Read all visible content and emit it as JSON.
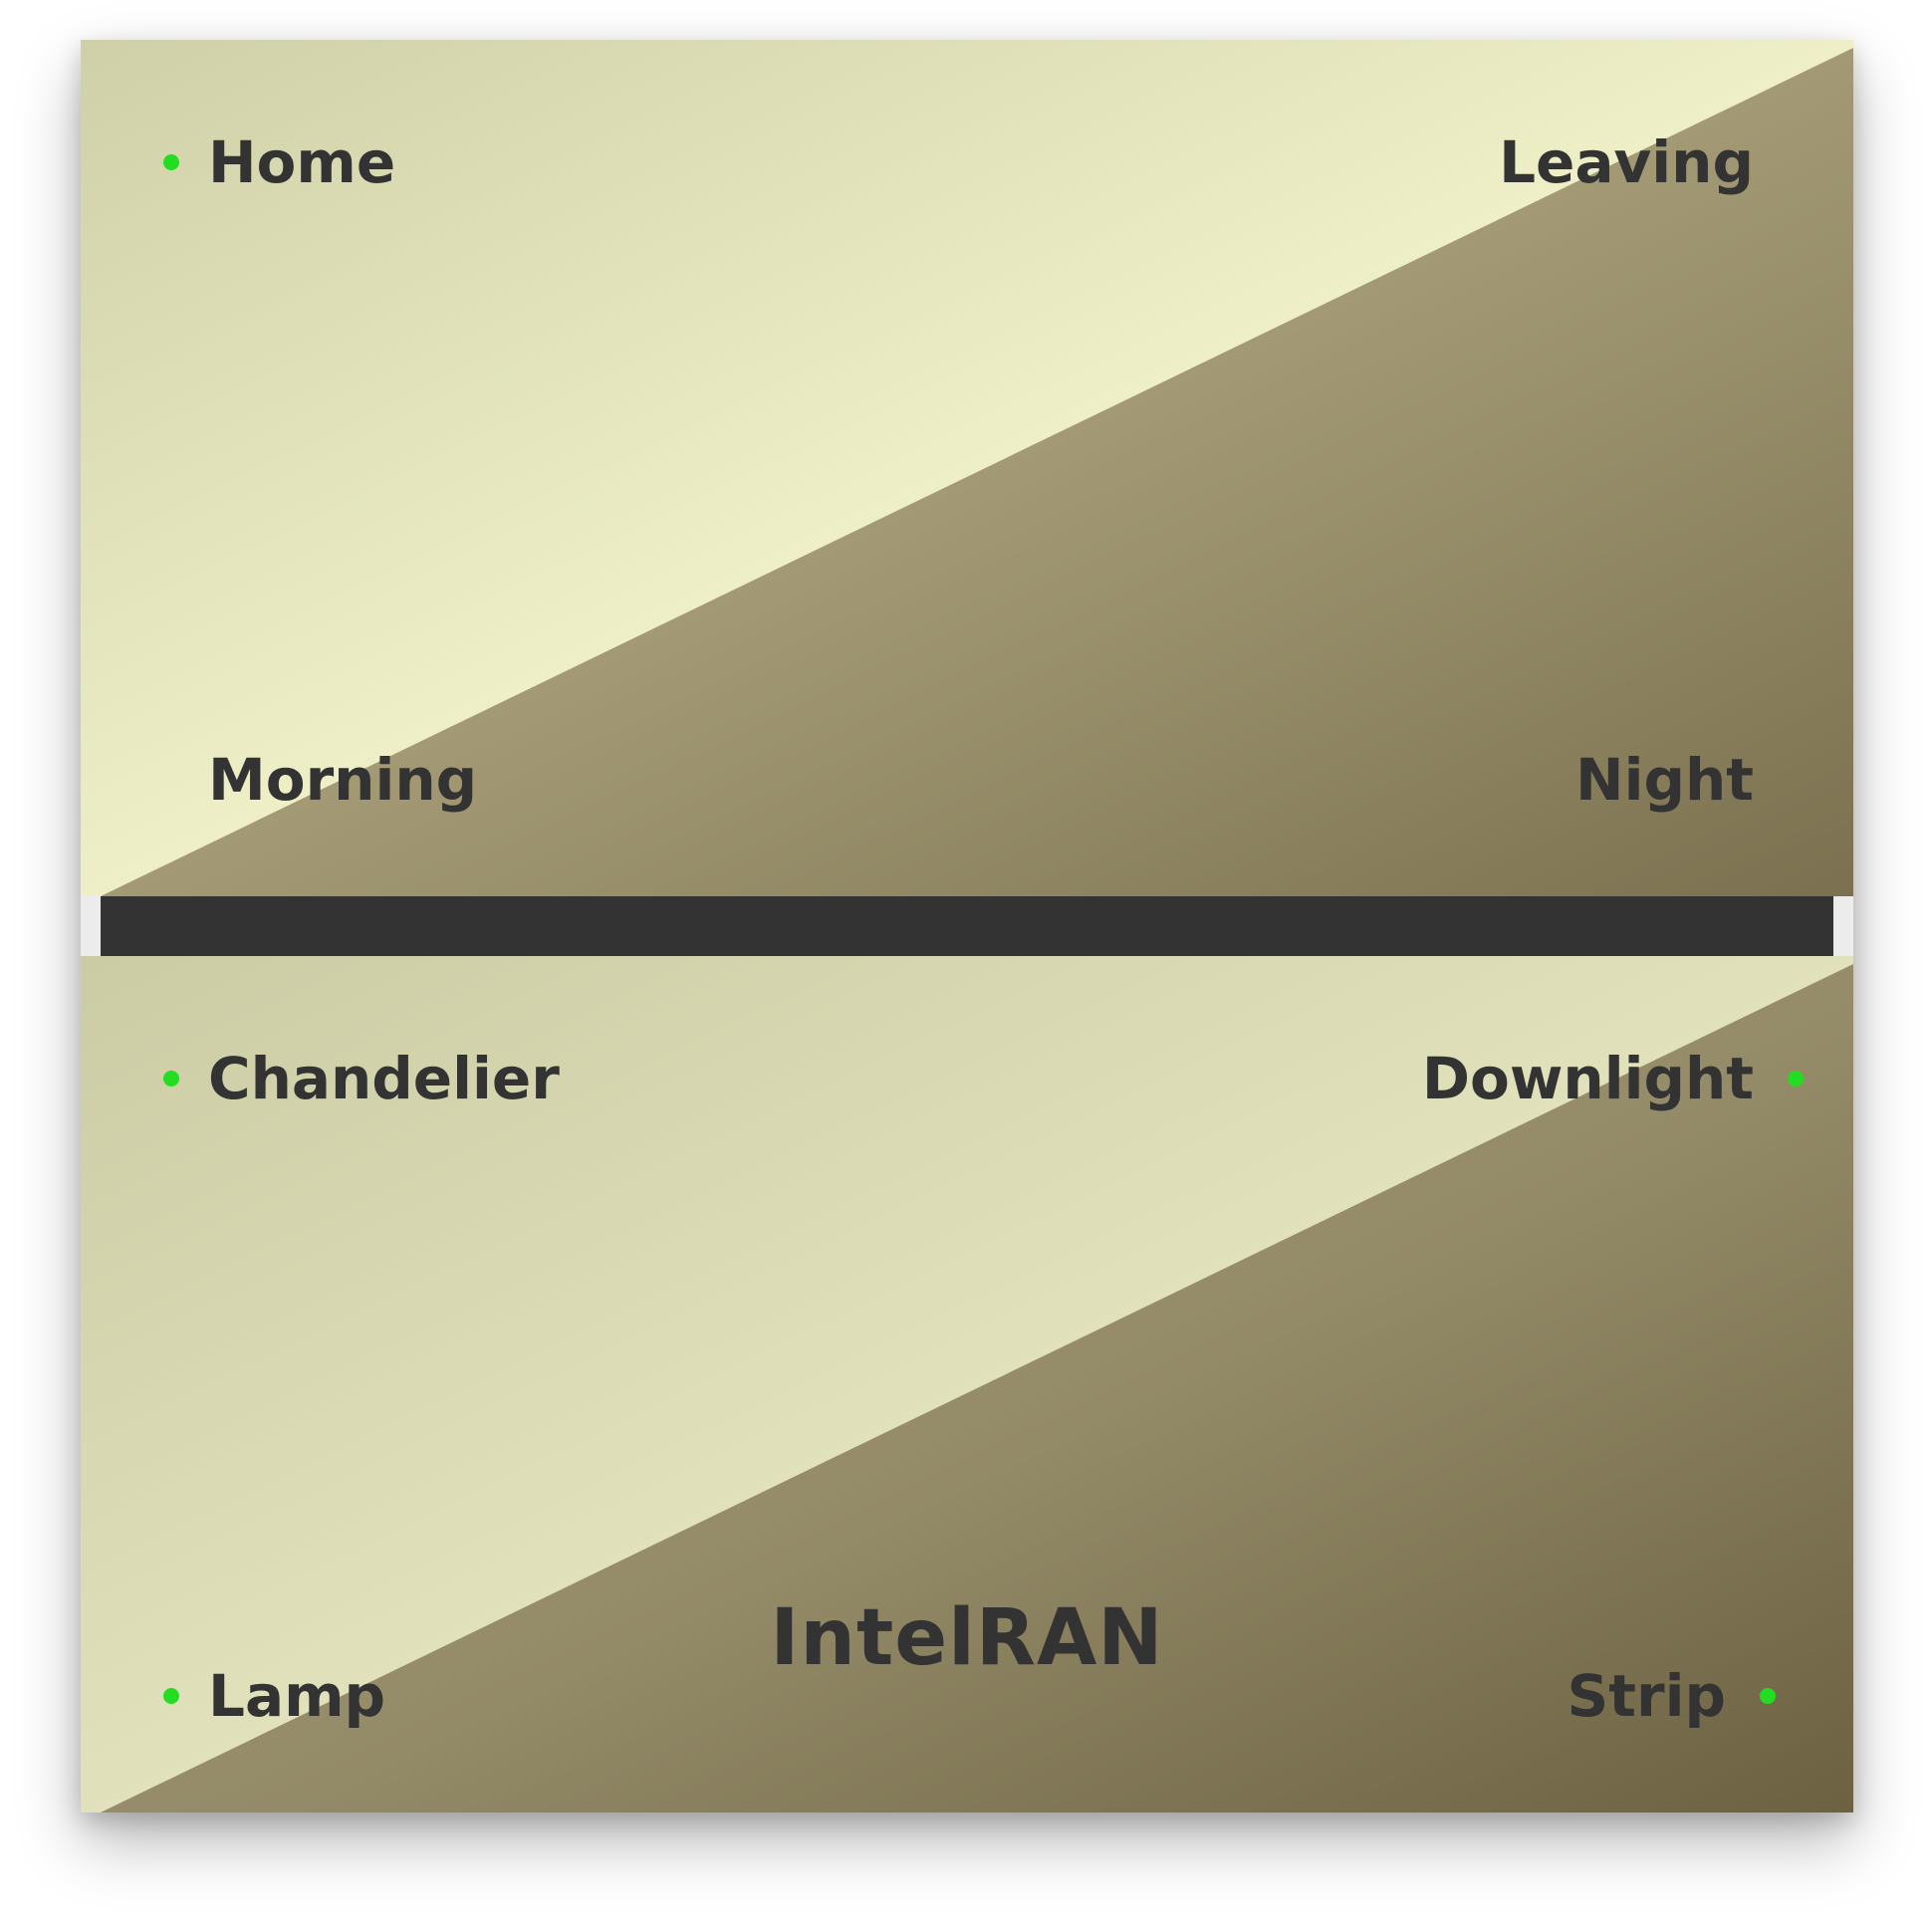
{
  "scenes": {
    "home": {
      "label": "Home",
      "active": true
    },
    "leaving": {
      "label": "Leaving",
      "active": false
    },
    "morning": {
      "label": "Morning",
      "active": false
    },
    "night": {
      "label": "Night",
      "active": false
    }
  },
  "lights": {
    "chandelier": {
      "label": "Chandelier",
      "on": true
    },
    "downlight": {
      "label": "Downlight",
      "on": true
    },
    "lamp": {
      "label": "Lamp",
      "on": true
    },
    "strip": {
      "label": "Strip",
      "on": true
    }
  },
  "brand": "IntelRAN",
  "colors": {
    "text": "#333333",
    "indicator": "#22dd22",
    "divider": "#333333",
    "light_gradient_start": "#cfd0a8",
    "light_gradient_end": "#f2f3c9",
    "dark_gradient_start": "#bbae88",
    "dark_gradient_end": "#6f6544"
  }
}
